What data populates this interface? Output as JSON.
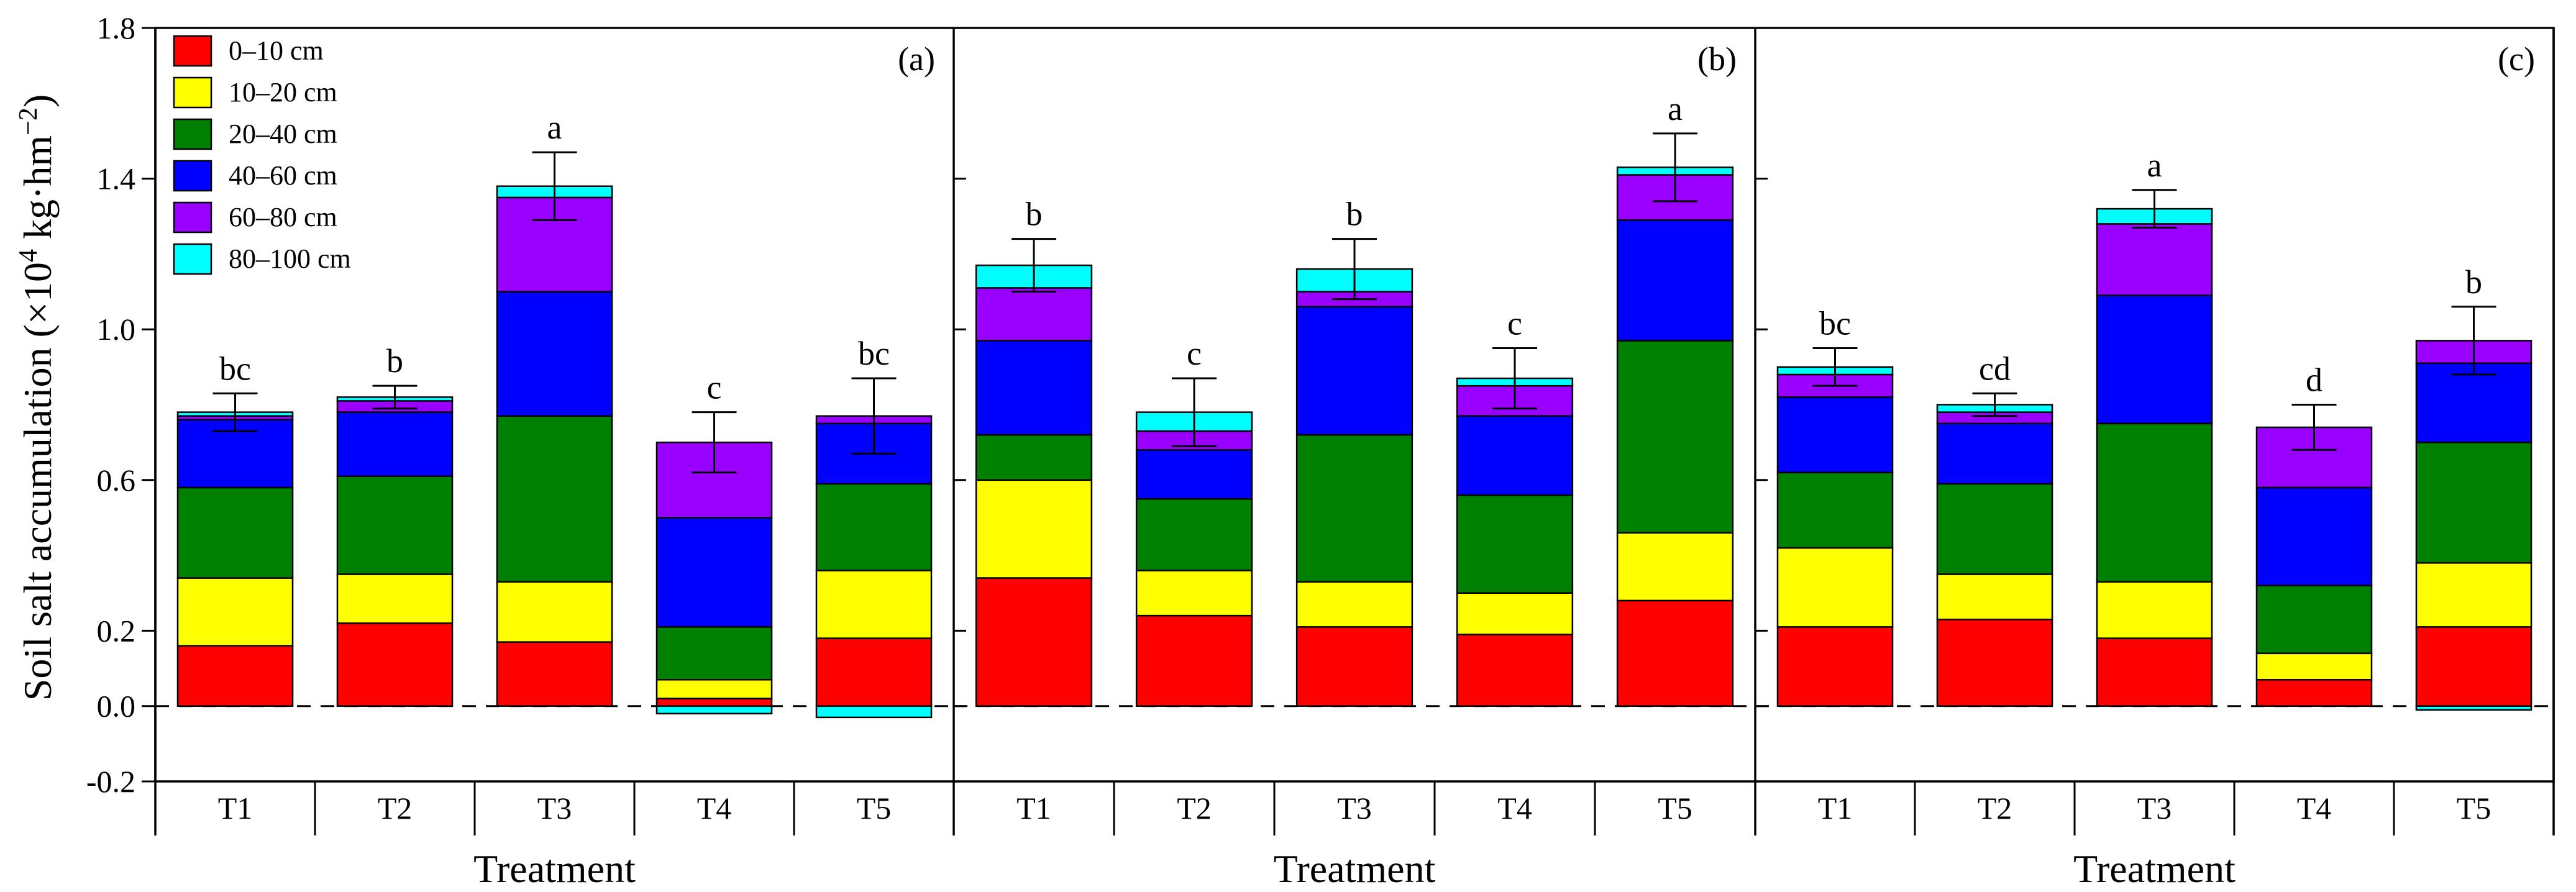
{
  "chart_data": {
    "type": "bar",
    "stacked": true,
    "ylabel_main": "Soil salt accumulation (×10",
    "ylabel_sup": "4",
    "ylabel_mid": " kg·hm",
    "ylabel_sup2": "−2",
    "ylabel_end": ")",
    "ylim": [
      -0.2,
      1.8
    ],
    "yticks": [
      "-0.2",
      "0.0",
      "0.2",
      "0.6",
      "1.0",
      "1.4",
      "1.8"
    ],
    "ytick_values": [
      -0.2,
      0.0,
      0.2,
      0.6,
      1.0,
      1.4,
      1.8
    ],
    "categories": [
      "T1",
      "T2",
      "T3",
      "T4",
      "T5"
    ],
    "xlabel": "Treatment",
    "legend": [
      {
        "label": "0–10 cm",
        "color": "#ff0000"
      },
      {
        "label": "10–20 cm",
        "color": "#ffff00"
      },
      {
        "label": "20–40 cm",
        "color": "#008000"
      },
      {
        "label": "40–60 cm",
        "color": "#0000ff"
      },
      {
        "label": "60–80 cm",
        "color": "#9900ff"
      },
      {
        "label": "80–100 cm",
        "color": "#00ffff"
      }
    ],
    "panels": [
      {
        "tag": "(a)",
        "bars": [
          {
            "category": "T1",
            "segments": [
              0.16,
              0.18,
              0.24,
              0.18,
              0.01,
              0.01
            ],
            "negatives": [],
            "error": 0.05,
            "letter": "bc"
          },
          {
            "category": "T2",
            "segments": [
              0.22,
              0.13,
              0.26,
              0.17,
              0.03,
              0.01
            ],
            "negatives": [],
            "error": 0.03,
            "letter": "b"
          },
          {
            "category": "T3",
            "segments": [
              0.17,
              0.16,
              0.44,
              0.33,
              0.25,
              0.03
            ],
            "negatives": [],
            "error": 0.09,
            "letter": "a"
          },
          {
            "category": "T4",
            "segments": [
              0.02,
              0.05,
              0.14,
              0.29,
              0.2,
              0.0
            ],
            "negatives": [
              -0.02
            ],
            "error": 0.08,
            "letter": "c"
          },
          {
            "category": "T5",
            "segments": [
              0.18,
              0.18,
              0.23,
              0.16,
              0.02,
              0.0
            ],
            "negatives": [
              -0.03
            ],
            "error": 0.1,
            "letter": "bc"
          }
        ]
      },
      {
        "tag": "(b)",
        "bars": [
          {
            "category": "T1",
            "segments": [
              0.34,
              0.26,
              0.12,
              0.25,
              0.14,
              0.06
            ],
            "negatives": [],
            "error": 0.07,
            "letter": "b"
          },
          {
            "category": "T2",
            "segments": [
              0.24,
              0.12,
              0.19,
              0.13,
              0.05,
              0.05
            ],
            "negatives": [],
            "error": 0.09,
            "letter": "c"
          },
          {
            "category": "T3",
            "segments": [
              0.21,
              0.12,
              0.39,
              0.34,
              0.04,
              0.06
            ],
            "negatives": [],
            "error": 0.08,
            "letter": "b"
          },
          {
            "category": "T4",
            "segments": [
              0.19,
              0.11,
              0.26,
              0.21,
              0.08,
              0.02
            ],
            "negatives": [],
            "error": 0.08,
            "letter": "c"
          },
          {
            "category": "T5",
            "segments": [
              0.28,
              0.18,
              0.51,
              0.32,
              0.12,
              0.02
            ],
            "negatives": [],
            "error": 0.09,
            "letter": "a"
          }
        ]
      },
      {
        "tag": "(c)",
        "bars": [
          {
            "category": "T1",
            "segments": [
              0.21,
              0.21,
              0.2,
              0.2,
              0.06,
              0.02
            ],
            "negatives": [],
            "error": 0.05,
            "letter": "bc"
          },
          {
            "category": "T2",
            "segments": [
              0.23,
              0.12,
              0.24,
              0.16,
              0.03,
              0.02
            ],
            "negatives": [],
            "error": 0.03,
            "letter": "cd"
          },
          {
            "category": "T3",
            "segments": [
              0.18,
              0.15,
              0.42,
              0.34,
              0.19,
              0.04
            ],
            "negatives": [],
            "error": 0.05,
            "letter": "a"
          },
          {
            "category": "T4",
            "segments": [
              0.07,
              0.07,
              0.18,
              0.26,
              0.16,
              0.0
            ],
            "negatives": [],
            "error": 0.06,
            "letter": "d"
          },
          {
            "category": "T5",
            "segments": [
              0.21,
              0.17,
              0.32,
              0.21,
              0.06,
              0.0
            ],
            "negatives": [
              -0.01
            ],
            "error": 0.09,
            "letter": "b"
          }
        ]
      }
    ]
  }
}
